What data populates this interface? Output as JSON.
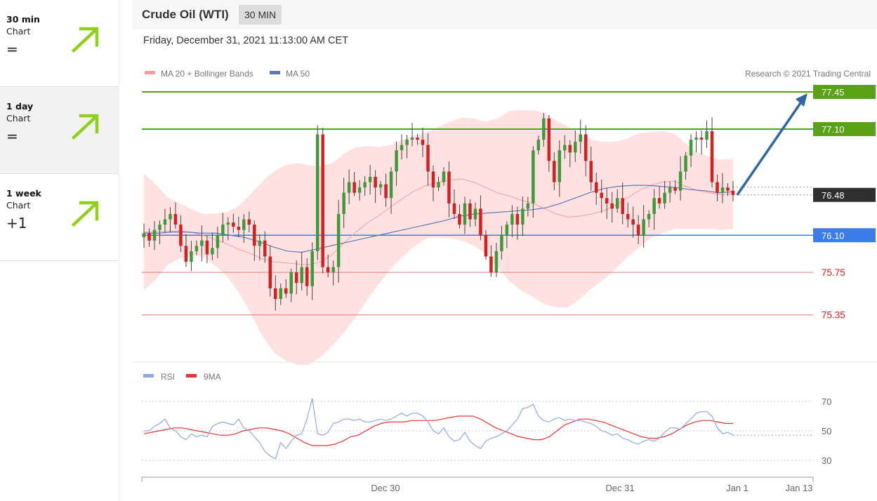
{
  "sidebar": {
    "cards": [
      {
        "timeframe": "30 min",
        "label": "Chart",
        "signal": "=",
        "bg": "#ffffff"
      },
      {
        "timeframe": "1 day",
        "label": "Chart",
        "signal": "=",
        "bg": "#f2f2f2"
      },
      {
        "timeframe": "1 week",
        "label": "Chart",
        "signal": "+1",
        "bg": "#ffffff"
      }
    ],
    "arrow_color": "#8fd11a"
  },
  "header": {
    "title": "Crude Oil (WTI)",
    "timeframe_badge": "30 MIN",
    "datetime": "Friday, December 31, 2021 11:13:00 AM CET",
    "copyright": "Research © 2021 Trading Central"
  },
  "legend": {
    "ma20_label": "MA 20 + Bollinger Bands",
    "ma50_label": "MA 50",
    "rsi_label": "RSI",
    "rsi_ma_label": "9MA"
  },
  "colors": {
    "bull": "#3f9a3a",
    "bear": "#d42020",
    "band_fill": "#ffe1e1",
    "ma20": "#f4a0a0",
    "ma50": "#5e7ab2",
    "resistance": "#5aa215",
    "support_key": "#3b7bea",
    "support": "#f08a8a",
    "last_price": "#2f2f2f",
    "forecast_arrow": "#2e66a6",
    "rsi": "#8fa8e6",
    "rsi_ma": "#ea3434"
  },
  "chart_data": [
    {
      "type": "candlestick",
      "title": "Crude Oil (WTI)",
      "timeframe": "30 MIN",
      "x_ticks": [
        "Dec 30",
        "Dec 31",
        "Jan 1",
        "Jan 13"
      ],
      "ylim": [
        74.9,
        77.55
      ],
      "levels": [
        {
          "value": 77.45,
          "label": "77.45",
          "kind": "resistance"
        },
        {
          "value": 77.1,
          "label": "77.10",
          "kind": "resistance"
        },
        {
          "value": 76.48,
          "label": "76.48",
          "kind": "last"
        },
        {
          "value": 76.1,
          "label": "76.10",
          "kind": "key_support"
        },
        {
          "value": 75.75,
          "label": "75.75",
          "kind": "support"
        },
        {
          "value": 75.35,
          "label": "75.35",
          "kind": "support"
        }
      ],
      "forecast": {
        "from": 76.48,
        "to": 77.45,
        "direction": "up"
      },
      "close": [
        76.12,
        76.05,
        76.15,
        76.2,
        76.25,
        76.3,
        76.2,
        76.0,
        75.85,
        75.95,
        76.0,
        76.05,
        75.92,
        75.98,
        76.1,
        76.2,
        76.22,
        76.18,
        76.15,
        76.25,
        76.2,
        76.0,
        76.05,
        75.9,
        75.6,
        75.5,
        75.6,
        75.55,
        75.75,
        75.65,
        75.8,
        75.62,
        75.95,
        77.05,
        75.8,
        75.75,
        75.8,
        76.3,
        76.5,
        76.6,
        76.5,
        76.55,
        76.6,
        76.65,
        76.55,
        76.58,
        76.45,
        76.7,
        76.9,
        76.95,
        77.0,
        77.02,
        77.0,
        76.95,
        76.7,
        76.55,
        76.6,
        76.7,
        76.4,
        76.3,
        76.2,
        76.4,
        76.25,
        76.35,
        76.1,
        75.9,
        75.75,
        75.95,
        76.1,
        76.2,
        76.3,
        76.2,
        76.35,
        76.4,
        76.9,
        77.0,
        77.2,
        76.8,
        76.6,
        76.9,
        76.95,
        76.88,
        76.98,
        77.05,
        76.8,
        76.6,
        76.5,
        76.45,
        76.4,
        76.35,
        76.45,
        76.3,
        76.25,
        76.2,
        76.1,
        76.25,
        76.3,
        76.45,
        76.4,
        76.5,
        76.55,
        76.52,
        76.7,
        76.85,
        77.0,
        77.02,
        77.0,
        77.08,
        76.6,
        76.5,
        76.55,
        76.52,
        76.48
      ],
      "ma20": [
        76.13,
        76.13,
        76.14,
        76.14,
        76.13,
        76.1,
        76.06,
        76.02,
        75.97,
        75.93,
        75.88,
        75.85,
        75.84,
        75.83,
        75.82,
        75.85,
        75.92,
        76.03,
        76.13,
        76.22,
        76.29,
        76.37,
        76.45,
        76.52,
        76.57,
        76.6,
        76.62,
        76.63,
        76.6,
        76.55,
        76.5,
        76.47,
        76.43,
        76.4,
        76.35,
        76.3,
        76.27,
        76.28,
        76.3,
        76.33,
        76.38,
        76.45,
        76.52,
        76.57,
        76.6,
        76.61,
        76.56,
        76.52,
        76.5,
        76.48,
        76.49
      ],
      "ma50": [
        76.12,
        76.12,
        76.13,
        76.13,
        76.12,
        76.12,
        76.1,
        76.08,
        76.04,
        75.99,
        75.95,
        75.94,
        75.97,
        76.0,
        76.03,
        76.06,
        76.09,
        76.12,
        76.15,
        76.18,
        76.21,
        76.24,
        76.28,
        76.3,
        76.31,
        76.32,
        76.33,
        76.34,
        76.36,
        76.4,
        76.45,
        76.5,
        76.54,
        76.56,
        76.57,
        76.57,
        76.56,
        76.55,
        76.53,
        76.52,
        76.5,
        76.51
      ]
    },
    {
      "type": "line",
      "title": "RSI",
      "y_ticks": [
        70,
        50,
        30
      ],
      "series": [
        {
          "name": "RSI",
          "values": [
            50,
            50,
            53,
            55,
            58,
            52,
            50,
            46,
            44,
            48,
            46,
            47,
            46,
            53,
            55,
            56,
            55,
            54,
            58,
            52,
            50,
            46,
            42,
            36,
            33,
            31,
            42,
            38,
            43,
            47,
            48,
            58,
            72,
            48,
            47,
            49,
            55,
            56,
            58,
            58,
            57,
            58,
            56,
            56,
            57,
            58,
            57,
            58,
            60,
            62,
            60,
            62,
            62,
            60,
            56,
            50,
            48,
            52,
            46,
            43,
            44,
            49,
            43,
            40,
            38,
            43,
            45,
            46,
            48,
            50,
            54,
            58,
            65,
            66,
            68,
            60,
            57,
            56,
            58,
            59,
            57,
            58,
            57,
            57,
            56,
            55,
            53,
            50,
            49,
            47,
            48,
            45,
            44,
            42,
            41,
            43,
            44,
            43,
            45,
            49,
            52,
            52,
            51,
            55,
            58,
            62,
            63,
            63,
            60,
            52,
            48,
            49,
            47
          ]
        },
        {
          "name": "9MA",
          "values": [
            48,
            49,
            50,
            51,
            52,
            52,
            51,
            50,
            49,
            48,
            47,
            47,
            48,
            50,
            51,
            52,
            52,
            51,
            50,
            48,
            45,
            42,
            40,
            40,
            40,
            41,
            43,
            46,
            47,
            50,
            53,
            55,
            56,
            56,
            56,
            57,
            57,
            57,
            57,
            58,
            59,
            60,
            60,
            60,
            58,
            55,
            52,
            50,
            48,
            46,
            45,
            44,
            44,
            46,
            50,
            54,
            56,
            58,
            58,
            57,
            56,
            54,
            52,
            50,
            48,
            46,
            45,
            45,
            46,
            48,
            51,
            54,
            56,
            57,
            57,
            56,
            55,
            55
          ]
        }
      ]
    }
  ]
}
